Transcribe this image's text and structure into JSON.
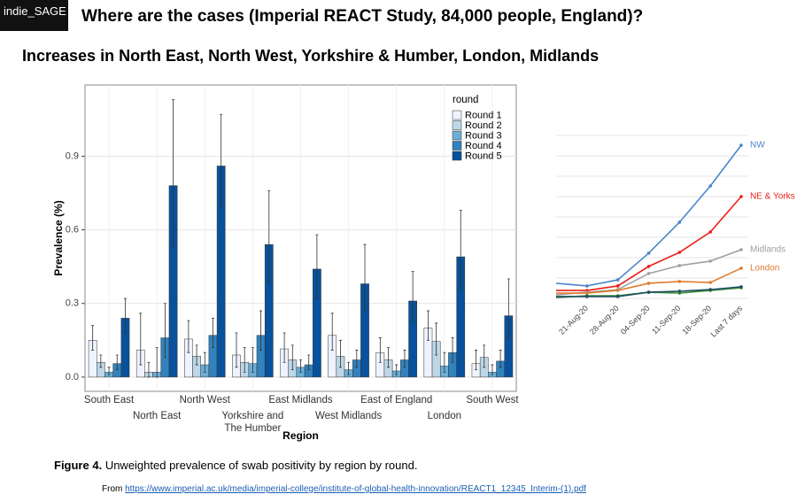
{
  "header": {
    "logo": "indie_SAGE",
    "title": "Where are the cases (Imperial REACT Study, 84,000 people, England)?",
    "subtitle": "Increases in North East, North West, Yorkshire & Humber, London, Midlands"
  },
  "caption": {
    "label": "Figure 4.",
    "text": "Unweighted prevalence of swab positivity by region by round."
  },
  "source": {
    "prefix": "From",
    "link": "https://www.imperial.ac.uk/media/imperial-college/institute-of-global-health-innovation/REACT1_12345_Interim-(1).pdf"
  },
  "chart_data": [
    {
      "type": "bar",
      "x_label": "Region",
      "y_label": "Prevalence (%)",
      "legend_title": "round",
      "legend": "top-right",
      "grid": true,
      "categories": [
        "South East",
        "North East",
        "North West",
        "Yorkshire and\nThe Humber",
        "East Midlands",
        "West Midlands",
        "East of England",
        "London",
        "South West"
      ],
      "ylim": [
        -0.058,
        1.19
      ],
      "yticks": [
        {
          "value": 0,
          "label": "0.0"
        },
        0.3,
        0.6,
        0.9
      ],
      "series": [
        {
          "name": "Round 1",
          "color": "#eff3ff",
          "values": [
            0.15,
            0.11,
            0.155,
            0.09,
            0.115,
            0.17,
            0.1,
            0.2,
            0.055
          ],
          "ci_low": [
            0.11,
            0.05,
            0.1,
            0.04,
            0.06,
            0.11,
            0.06,
            0.15,
            0.03
          ],
          "ci_high": [
            0.21,
            0.26,
            0.23,
            0.18,
            0.18,
            0.26,
            0.16,
            0.27,
            0.11
          ]
        },
        {
          "name": "Round 2",
          "color": "#bdd7e7",
          "values": [
            0.06,
            0.02,
            0.085,
            0.06,
            0.07,
            0.085,
            0.07,
            0.145,
            0.08
          ],
          "ci_low": [
            0.04,
            0.0,
            0.05,
            0.02,
            0.03,
            0.04,
            0.04,
            0.09,
            0.04
          ],
          "ci_high": [
            0.09,
            0.06,
            0.13,
            0.12,
            0.13,
            0.15,
            0.12,
            0.22,
            0.13
          ]
        },
        {
          "name": "Round 3",
          "color": "#6baed6",
          "values": [
            0.02,
            0.02,
            0.05,
            0.055,
            0.04,
            0.03,
            0.025,
            0.045,
            0.02
          ],
          "ci_low": [
            0.01,
            0.0,
            0.02,
            0.02,
            0.02,
            0.01,
            0.01,
            0.02,
            0.01
          ],
          "ci_high": [
            0.04,
            0.12,
            0.1,
            0.12,
            0.07,
            0.06,
            0.05,
            0.1,
            0.05
          ]
        },
        {
          "name": "Round 4",
          "color": "#3182bd",
          "values": [
            0.055,
            0.16,
            0.17,
            0.17,
            0.05,
            0.07,
            0.07,
            0.1,
            0.065
          ],
          "ci_low": [
            0.03,
            0.08,
            0.12,
            0.11,
            0.03,
            0.04,
            0.04,
            0.06,
            0.04
          ],
          "ci_high": [
            0.09,
            0.3,
            0.24,
            0.27,
            0.09,
            0.11,
            0.11,
            0.16,
            0.11
          ]
        },
        {
          "name": "Round 5",
          "color": "#08519c",
          "values": [
            0.24,
            0.78,
            0.86,
            0.54,
            0.44,
            0.38,
            0.31,
            0.49,
            0.25
          ],
          "ci_low": [
            0.18,
            0.53,
            0.69,
            0.38,
            0.32,
            0.27,
            0.23,
            0.36,
            0.16
          ],
          "ci_high": [
            0.32,
            1.13,
            1.07,
            0.76,
            0.58,
            0.54,
            0.43,
            0.68,
            0.4
          ]
        }
      ]
    },
    {
      "type": "line",
      "grid": true,
      "categories": [
        null,
        "21-Aug-20",
        "28-Aug-20",
        "04-Sep-20",
        "11-Sep-20",
        "18-Sep-20",
        "Last 7 days"
      ],
      "ylim": [
        0,
        0.8
      ],
      "series": [
        {
          "name": "NW",
          "color": "#4a86c8",
          "values": [
            0.074,
            0.061,
            0.091,
            0.222,
            0.374,
            0.552,
            0.752
          ]
        },
        {
          "name": "NE & Yorks",
          "color": "#e8201c",
          "values": [
            0.039,
            0.039,
            0.061,
            0.157,
            0.226,
            0.326,
            0.5
          ]
        },
        {
          "name": "Midlands",
          "color": "#a0a0a0",
          "values": [
            0.017,
            0.03,
            0.043,
            0.122,
            0.161,
            0.183,
            0.239
          ]
        },
        {
          "name": "London",
          "color": "#e07b30",
          "values": [
            0.026,
            0.026,
            0.039,
            0.074,
            0.083,
            0.078,
            0.148
          ]
        },
        {
          "color": "#3c8f3c",
          "values": [
            0.004,
            0.013,
            0.013,
            0.03,
            0.026,
            0.039,
            0.052
          ]
        },
        {
          "color": "#1f4e5f",
          "values": [
            0.009,
            0.009,
            0.009,
            0.03,
            0.035,
            0.043,
            0.057
          ]
        }
      ]
    }
  ]
}
